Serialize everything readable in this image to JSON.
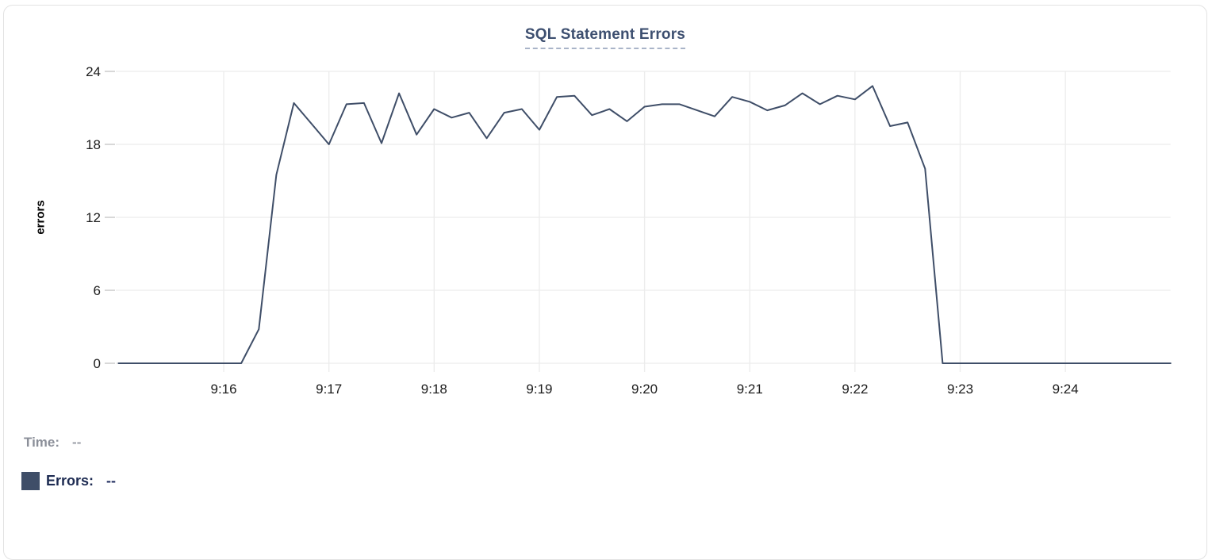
{
  "chart_data": {
    "type": "line",
    "title": "SQL Statement Errors",
    "xlabel": "",
    "ylabel": "errors",
    "ylim": [
      0,
      24
    ],
    "y_ticks": [
      0,
      6,
      12,
      18,
      24
    ],
    "x_tick_labels": [
      "9:16",
      "9:17",
      "9:18",
      "9:19",
      "9:20",
      "9:21",
      "9:22",
      "9:23",
      "9:24"
    ],
    "x_range": [
      "9:15:00",
      "9:25:00"
    ],
    "x_interval_seconds": 10,
    "grid": true,
    "legend_position": "bottom-left",
    "x": [
      "9:15:00",
      "9:15:10",
      "9:15:20",
      "9:15:30",
      "9:15:40",
      "9:15:50",
      "9:16:00",
      "9:16:10",
      "9:16:20",
      "9:16:30",
      "9:16:40",
      "9:16:50",
      "9:17:00",
      "9:17:10",
      "9:17:20",
      "9:17:30",
      "9:17:40",
      "9:17:50",
      "9:18:00",
      "9:18:10",
      "9:18:20",
      "9:18:30",
      "9:18:40",
      "9:18:50",
      "9:19:00",
      "9:19:10",
      "9:19:20",
      "9:19:30",
      "9:19:40",
      "9:19:50",
      "9:20:00",
      "9:20:10",
      "9:20:20",
      "9:20:30",
      "9:20:40",
      "9:20:50",
      "9:21:00",
      "9:21:10",
      "9:21:20",
      "9:21:30",
      "9:21:40",
      "9:21:50",
      "9:22:00",
      "9:22:10",
      "9:22:20",
      "9:22:30",
      "9:22:40",
      "9:22:50",
      "9:23:00",
      "9:23:10",
      "9:23:20",
      "9:23:30",
      "9:23:40",
      "9:23:50",
      "9:24:00",
      "9:24:10",
      "9:24:20",
      "9:24:30",
      "9:24:40",
      "9:24:50",
      "9:25:00"
    ],
    "series": [
      {
        "name": "Errors",
        "values": [
          0,
          0,
          0,
          0,
          0,
          0,
          0,
          0,
          2.8,
          15.5,
          21.4,
          19.7,
          18,
          21.3,
          21.4,
          18.1,
          22.2,
          18.8,
          20.9,
          20.2,
          20.6,
          18.5,
          20.6,
          20.9,
          19.2,
          21.9,
          22,
          20.4,
          20.9,
          19.9,
          21.1,
          21.3,
          21.3,
          20.8,
          20.3,
          21.9,
          21.5,
          20.8,
          21.2,
          22.2,
          21.3,
          22,
          21.7,
          22.8,
          19.5,
          19.8,
          16,
          0,
          0,
          0,
          0,
          0,
          0,
          0,
          0,
          0,
          0,
          0,
          0,
          0,
          0
        ]
      }
    ]
  },
  "colors": {
    "line": "#3f4e68",
    "swatch": "#3f4e68",
    "title": "#3d4f70",
    "grid": "#ececec",
    "tick_mark": "#d8d8d8",
    "tick_text": "#1c1c1c"
  },
  "readout": {
    "time_label": "Time:",
    "time_value": "--",
    "errors_label": "Errors:",
    "errors_value": "--"
  }
}
